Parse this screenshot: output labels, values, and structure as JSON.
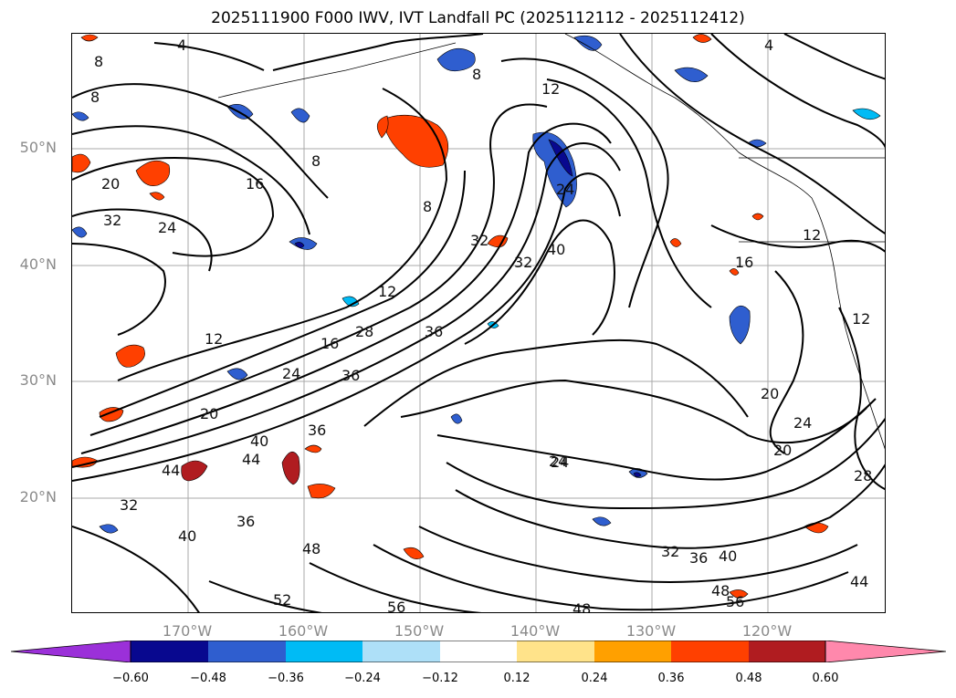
{
  "title": "2025111900 F000 IWV, IVT Landfall PC (2025112112 - 2025112412)",
  "lat_labels": [
    "50°N",
    "40°N",
    "30°N",
    "20°N"
  ],
  "lon_labels": [
    "170°W",
    "160°W",
    "150°W",
    "140°W",
    "130°W",
    "120°W"
  ],
  "colorbar": {
    "ticks": [
      "−0.60",
      "−0.48",
      "−0.36",
      "−0.24",
      "−0.12",
      "0.12",
      "0.24",
      "0.36",
      "0.48",
      "0.60"
    ],
    "colors": [
      "#9b30d9",
      "#08088f",
      "#2f5ecf",
      "#00bbf5",
      "#aee0f8",
      "#ffffff",
      "#ffe38a",
      "#ffa000",
      "#ff4000",
      "#b01c20",
      "#ff88ac"
    ]
  },
  "contour_labels": [
    "4",
    "4",
    "8",
    "8",
    "8",
    "8",
    "8",
    "12",
    "12",
    "12",
    "12",
    "16",
    "16",
    "16",
    "20",
    "20",
    "20",
    "20",
    "24",
    "24",
    "24",
    "24",
    "24",
    "28",
    "28",
    "32",
    "32",
    "32",
    "32",
    "32",
    "36",
    "36",
    "36",
    "36",
    "40",
    "40",
    "40",
    "40",
    "44",
    "44",
    "44",
    "48",
    "48",
    "48",
    "52",
    "56",
    "56",
    "36",
    "24",
    "12"
  ]
}
